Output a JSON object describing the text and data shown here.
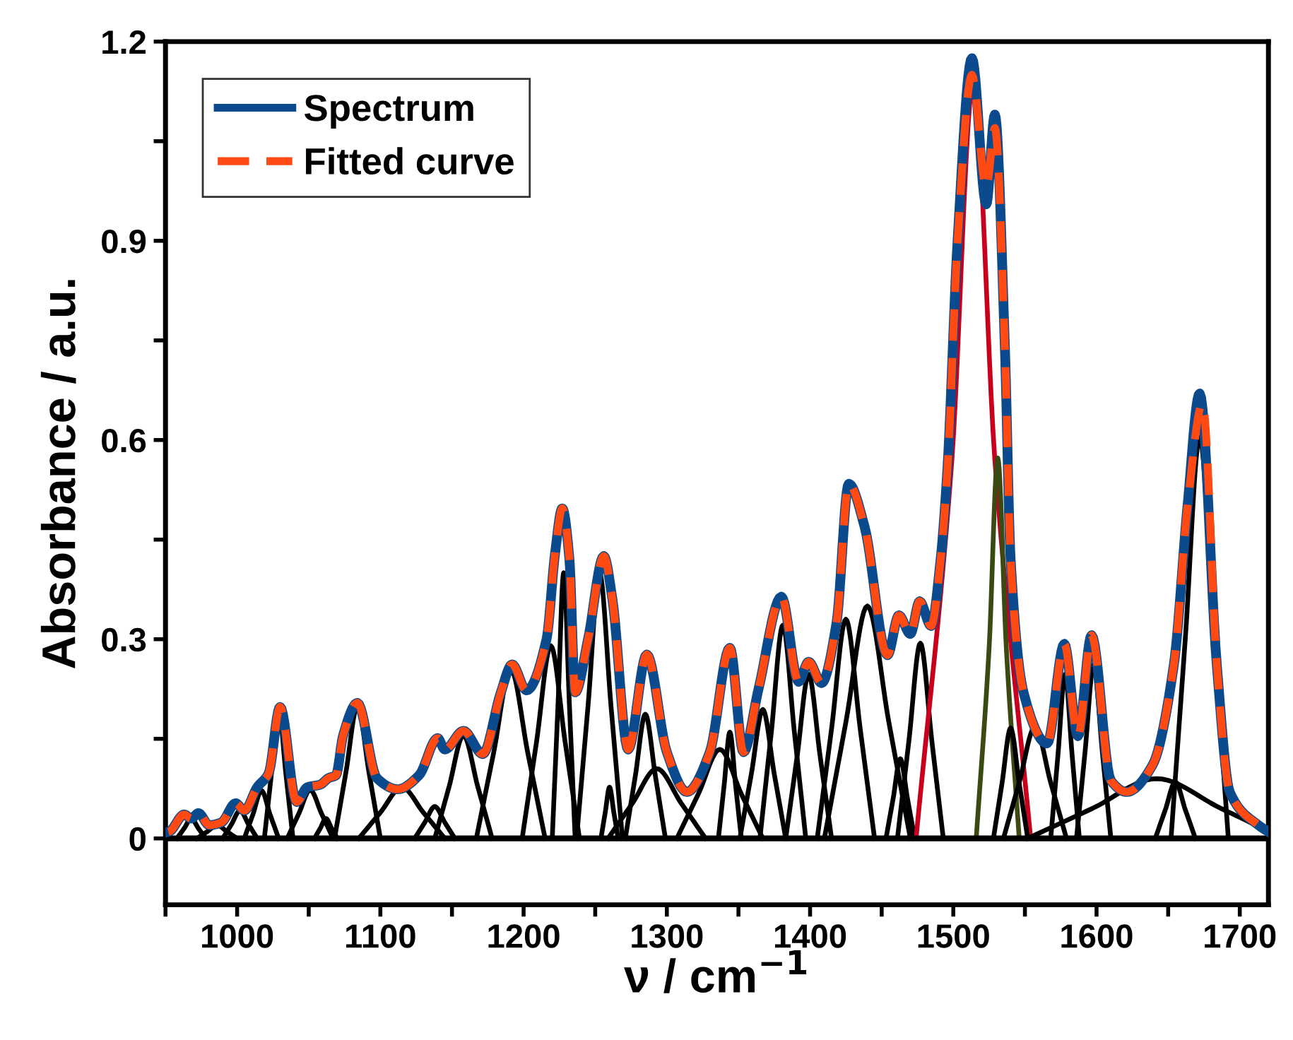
{
  "chart_data": {
    "type": "line",
    "xlabel": "ν / cm$^{−1}$",
    "ylabel": "Absorbance / a.u.",
    "xlim": [
      950,
      1720
    ],
    "ylim": [
      -0.1,
      1.2
    ],
    "xticks": [
      {
        "value": 950,
        "label": null
      },
      1000,
      {
        "value": 1050,
        "label": null
      },
      1100,
      {
        "value": 1150,
        "label": null
      },
      1200,
      {
        "value": 1250,
        "label": null
      },
      1300,
      {
        "value": 1350,
        "label": null
      },
      1400,
      {
        "value": 1450,
        "label": null
      },
      1500,
      {
        "value": 1550,
        "label": null
      },
      1600,
      {
        "value": 1650,
        "label": null
      },
      1700
    ],
    "yticks": [
      0,
      {
        "value": 0.15,
        "label": null
      },
      0.3,
      {
        "value": 0.45,
        "label": null
      },
      0.6,
      {
        "value": 0.75,
        "label": null
      },
      0.9,
      {
        "value": 1.05,
        "label": null
      },
      1.2
    ],
    "grid": false,
    "legend": "top left",
    "ref_lines": [
      {
        "axis": "y",
        "value": 0,
        "label": null,
        "color": "#000000"
      }
    ],
    "series": [
      {
        "color": "#000000",
        "x": [
          958,
          963,
          968,
          973,
          978
        ],
        "values": [
          0,
          0.015,
          0.03,
          0.015,
          0
        ]
      },
      {
        "color": "#000000",
        "x": [
          972,
          979,
          986,
          993,
          1000
        ],
        "values": [
          0,
          0.01,
          0.02,
          0.01,
          0
        ]
      },
      {
        "color": "#000000",
        "x": [
          990,
          996,
          1002,
          1008,
          1014
        ],
        "values": [
          0,
          0.021,
          0.042,
          0.021,
          0
        ]
      },
      {
        "color": "#000000",
        "x": [
          1005,
          1011,
          1017,
          1023,
          1029
        ],
        "values": [
          0,
          0.036,
          0.072,
          0.036,
          0
        ]
      },
      {
        "color": "#000000",
        "x": [
          1019,
          1024,
          1029,
          1034,
          1039
        ],
        "values": [
          0,
          0.098,
          0.195,
          0.098,
          0
        ]
      },
      {
        "color": "#000000",
        "x": [
          1035,
          1043,
          1051,
          1059,
          1067
        ],
        "values": [
          0,
          0.037,
          0.073,
          0.037,
          0
        ]
      },
      {
        "color": "#000000",
        "x": [
          1054,
          1058,
          1062,
          1066,
          1070
        ],
        "values": [
          0,
          0.015,
          0.03,
          0.015,
          0
        ]
      },
      {
        "color": "#000000",
        "x": [
          1068,
          1076,
          1084,
          1092,
          1100
        ],
        "values": [
          0,
          0.1,
          0.2,
          0.1,
          0
        ]
      },
      {
        "color": "#000000",
        "x": [
          1085,
          1100,
          1115,
          1130,
          1145
        ],
        "values": [
          0,
          0.039,
          0.077,
          0.039,
          0
        ]
      },
      {
        "color": "#000000",
        "x": [
          1124,
          1131,
          1138,
          1145,
          1152
        ],
        "values": [
          0,
          0.024,
          0.048,
          0.024,
          0
        ]
      },
      {
        "color": "#000000",
        "x": [
          1138,
          1148,
          1158,
          1168,
          1178
        ],
        "values": [
          0,
          0.078,
          0.155,
          0.078,
          0
        ]
      },
      {
        "color": "#000000",
        "x": [
          1167,
          1179,
          1191,
          1203,
          1215
        ],
        "values": [
          0,
          0.128,
          0.255,
          0.128,
          0
        ]
      },
      {
        "color": "#000000",
        "x": [
          1199,
          1209,
          1219,
          1229,
          1239
        ],
        "values": [
          0,
          0.145,
          0.29,
          0.145,
          0
        ]
      },
      {
        "color": "#000000",
        "x": [
          1220,
          1224,
          1228,
          1232,
          1236
        ],
        "values": [
          0,
          0.2,
          0.4,
          0.2,
          0
        ]
      },
      {
        "color": "#000000",
        "x": [
          1237,
          1245,
          1253,
          1261,
          1269
        ],
        "values": [
          0,
          0.2,
          0.4,
          0.2,
          0
        ]
      },
      {
        "color": "#000000",
        "x": [
          1254,
          1257,
          1260,
          1263,
          1266
        ],
        "values": [
          0,
          0.039,
          0.077,
          0.039,
          0
        ]
      },
      {
        "color": "#000000",
        "x": [
          1271,
          1278,
          1285,
          1292,
          1299
        ],
        "values": [
          0,
          0.094,
          0.187,
          0.094,
          0
        ]
      },
      {
        "color": "#000000",
        "x": [
          1259,
          1276,
          1293,
          1310,
          1327
        ],
        "values": [
          0,
          0.053,
          0.105,
          0.053,
          0
        ]
      },
      {
        "color": "#000000",
        "x": [
          1307,
          1322,
          1337,
          1352,
          1367
        ],
        "values": [
          0,
          0.067,
          0.134,
          0.067,
          0
        ]
      },
      {
        "color": "#000000",
        "x": [
          1336,
          1340,
          1344,
          1348,
          1352
        ],
        "values": [
          0,
          0.08,
          0.16,
          0.08,
          0
        ]
      },
      {
        "color": "#000000",
        "x": [
          1351,
          1359,
          1367,
          1375,
          1383
        ],
        "values": [
          0,
          0.097,
          0.194,
          0.097,
          0
        ]
      },
      {
        "color": "#000000",
        "x": [
          1365,
          1373,
          1381,
          1389,
          1397
        ],
        "values": [
          0,
          0.161,
          0.321,
          0.161,
          0
        ]
      },
      {
        "color": "#000000",
        "x": [
          1383,
          1391,
          1399,
          1407,
          1415
        ],
        "values": [
          0,
          0.124,
          0.247,
          0.124,
          0
        ]
      },
      {
        "color": "#000000",
        "x": [
          1405,
          1415,
          1425,
          1435,
          1445
        ],
        "values": [
          0,
          0.165,
          0.33,
          0.165,
          0
        ]
      },
      {
        "color": "#000000",
        "x": [
          1410,
          1425,
          1440,
          1455,
          1470
        ],
        "values": [
          0,
          0.175,
          0.35,
          0.175,
          0
        ]
      },
      {
        "color": "#000000",
        "x": [
          1453,
          1458,
          1463,
          1468,
          1473
        ],
        "values": [
          0,
          0.06,
          0.12,
          0.06,
          0
        ]
      },
      {
        "color": "#000000",
        "x": [
          1461,
          1469,
          1477,
          1485,
          1493
        ],
        "values": [
          0,
          0.147,
          0.294,
          0.147,
          0
        ]
      },
      {
        "color": "#c8001e",
        "x": [
          1474,
          1499,
          1514,
          1529,
          1554
        ],
        "values": [
          0,
          0.57,
          1.14,
          0.57,
          0
        ]
      },
      {
        "color": "#3b4a12",
        "x": [
          1516,
          1525,
          1531,
          1537,
          1546
        ],
        "values": [
          0,
          0.287,
          0.573,
          0.287,
          0
        ]
      },
      {
        "color": "#000000",
        "x": [
          1528,
          1534,
          1540,
          1546,
          1552
        ],
        "values": [
          0,
          0.083,
          0.166,
          0.083,
          0
        ]
      },
      {
        "color": "#000000",
        "x": [
          1535,
          1546,
          1557,
          1568,
          1579
        ],
        "values": [
          0,
          0.084,
          0.168,
          0.084,
          0
        ]
      },
      {
        "color": "#000000",
        "x": [
          1568,
          1573,
          1578,
          1583,
          1588
        ],
        "values": [
          0,
          0.124,
          0.247,
          0.124,
          0
        ]
      },
      {
        "color": "#000000",
        "x": [
          1586,
          1592,
          1598,
          1604,
          1610
        ],
        "values": [
          0,
          0.131,
          0.262,
          0.131,
          0
        ]
      },
      {
        "color": "#000000",
        "x": [
          1552,
          1597,
          1642,
          1687,
          1720
        ],
        "values": [
          0,
          0.045,
          0.09,
          0.045,
          0.011
        ]
      },
      {
        "color": "#000000",
        "x": [
          1641,
          1648,
          1655,
          1662,
          1669
        ],
        "values": [
          0,
          0.043,
          0.085,
          0.043,
          0
        ]
      },
      {
        "color": "#000000",
        "x": [
          1652,
          1662,
          1672,
          1682,
          1692
        ],
        "values": [
          0,
          0.302,
          0.604,
          0.302,
          0
        ]
      },
      {
        "name": "Spectrum",
        "color": "#0b4a8c",
        "line_style": "solid",
        "x": [
          952,
          963,
          968,
          973,
          980.5,
          989,
          999,
          1005,
          1014,
          1022,
          1030,
          1041.5,
          1049,
          1058,
          1064,
          1069,
          1074,
          1084,
          1097.5,
          1112,
          1127,
          1140,
          1145,
          1158,
          1171.5,
          1184,
          1192,
          1202,
          1216,
          1222,
          1227,
          1232,
          1236,
          1245,
          1256,
          1262,
          1273,
          1286,
          1300,
          1314,
          1330,
          1344,
          1353.5,
          1364,
          1380,
          1392,
          1399,
          1408,
          1418.5,
          1427,
          1438,
          1454,
          1462,
          1470,
          1476.5,
          1484.5,
          1491,
          1496,
          1503,
          1513,
          1523,
          1529,
          1536,
          1540,
          1549,
          1565.5,
          1577.5,
          1587,
          1596.5,
          1610,
          1621,
          1639,
          1654,
          1663.5,
          1672,
          1684,
          1693,
          1713,
          1720
        ],
        "values": [
          0.01,
          0.036,
          0.03,
          0.038,
          0.02,
          0.024,
          0.053,
          0.042,
          0.077,
          0.098,
          0.198,
          0.055,
          0.077,
          0.081,
          0.091,
          0.095,
          0.155,
          0.204,
          0.091,
          0.074,
          0.095,
          0.151,
          0.134,
          0.162,
          0.127,
          0.219,
          0.262,
          0.223,
          0.3,
          0.43,
          0.497,
          0.42,
          0.22,
          0.3,
          0.425,
          0.36,
          0.134,
          0.277,
          0.13,
          0.07,
          0.13,
          0.287,
          0.13,
          0.225,
          0.364,
          0.236,
          0.266,
          0.234,
          0.325,
          0.534,
          0.47,
          0.276,
          0.336,
          0.308,
          0.357,
          0.32,
          0.417,
          0.56,
          0.9,
          1.175,
          0.955,
          1.09,
          0.74,
          0.42,
          0.22,
          0.143,
          0.293,
          0.154,
          0.306,
          0.087,
          0.07,
          0.11,
          0.262,
          0.5,
          0.67,
          0.26,
          0.07,
          0.02,
          0.01
        ]
      },
      {
        "name": "Fitted curve",
        "color": "#ff4a14",
        "line_style": "dashed",
        "x": [
          952,
          963,
          968,
          973,
          980.5,
          989,
          999,
          1005,
          1014,
          1022,
          1030,
          1041.5,
          1049,
          1058,
          1064,
          1069,
          1074,
          1084,
          1097.5,
          1112,
          1127,
          1140,
          1145,
          1158,
          1171.5,
          1184,
          1192,
          1202,
          1216,
          1222,
          1227,
          1232,
          1236,
          1245,
          1256,
          1262,
          1273,
          1286,
          1300,
          1314,
          1330,
          1344,
          1353.5,
          1364,
          1380,
          1392,
          1399,
          1408,
          1418.5,
          1427,
          1438,
          1454,
          1462,
          1470,
          1476.5,
          1484.5,
          1491,
          1496,
          1503,
          1513,
          1523,
          1529,
          1536,
          1540,
          1549,
          1565.5,
          1577.5,
          1587,
          1596.5,
          1610,
          1621,
          1639,
          1654,
          1663.5,
          1674,
          1684,
          1693,
          1713,
          1720
        ],
        "values": [
          0.01,
          0.036,
          0.03,
          0.038,
          0.02,
          0.024,
          0.053,
          0.042,
          0.077,
          0.098,
          0.198,
          0.055,
          0.077,
          0.081,
          0.091,
          0.095,
          0.155,
          0.204,
          0.091,
          0.074,
          0.095,
          0.151,
          0.134,
          0.162,
          0.127,
          0.219,
          0.262,
          0.223,
          0.3,
          0.43,
          0.497,
          0.42,
          0.22,
          0.3,
          0.425,
          0.36,
          0.134,
          0.277,
          0.13,
          0.07,
          0.13,
          0.287,
          0.13,
          0.225,
          0.364,
          0.236,
          0.266,
          0.234,
          0.325,
          0.534,
          0.47,
          0.276,
          0.336,
          0.308,
          0.357,
          0.32,
          0.417,
          0.56,
          0.9,
          1.15,
          0.98,
          1.07,
          0.74,
          0.42,
          0.22,
          0.143,
          0.293,
          0.154,
          0.306,
          0.087,
          0.07,
          0.11,
          0.262,
          0.5,
          0.655,
          0.26,
          0.07,
          0.02,
          0.01
        ]
      }
    ]
  }
}
